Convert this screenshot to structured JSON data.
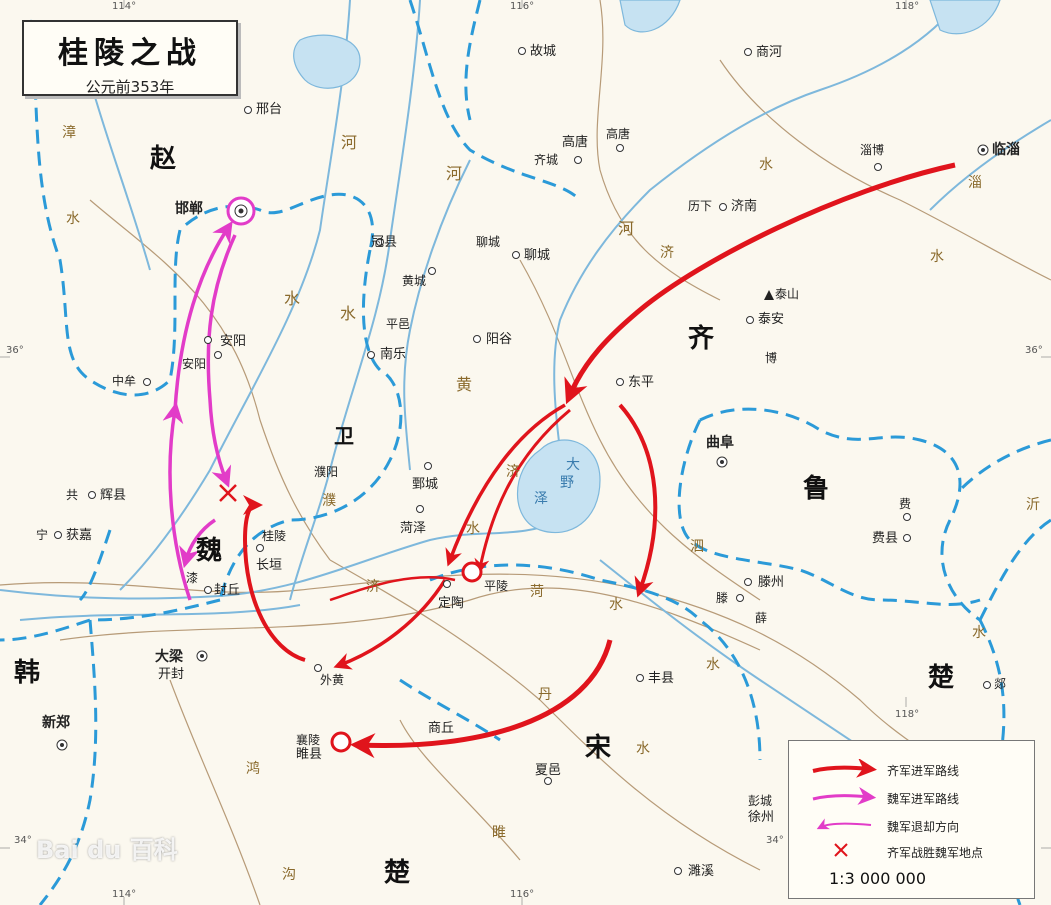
{
  "title": {
    "main": "桂陵之战",
    "sub": "公元前353年"
  },
  "grid_labels": {
    "lon": [
      "114°",
      "116°",
      "118°"
    ],
    "lat": [
      "36°",
      "34°"
    ]
  },
  "regions": {
    "zhao": "赵",
    "wei_state": "魏",
    "wei_small": "卫",
    "qi": "齐",
    "lu": "鲁",
    "han": "韩",
    "song": "宋",
    "chu_north": "楚",
    "chu_south": "楚"
  },
  "cities": {
    "handan": "邯郸",
    "xingtai": "邢台",
    "anyang_modern": "安阳",
    "anyang_old": "安阳",
    "zhongmou": "中牟",
    "gong": "共",
    "huixian": "辉县",
    "ning": "宁",
    "huojia": "获嘉",
    "qi_city": "漆",
    "fengqiu": "封丘",
    "guiling": "桂陵",
    "changyuan": "长垣",
    "daliang": "大梁",
    "kaifeng": "开封",
    "xinzheng": "新郑",
    "waihuang": "外黄",
    "xiangling": "襄陵",
    "suixian": "睢县",
    "shangqiu": "商丘",
    "xiayi": "夏邑",
    "pengcheng": "彭城",
    "xuzhou": "徐州",
    "suixi": "濉溪",
    "fengxian": "丰县",
    "dingtao": "定陶",
    "pingling": "平陵",
    "heze": "菏泽",
    "juancheng": "鄄城",
    "puyang": "濮阳",
    "guanxian": "冠县",
    "huangcheng": "黄城",
    "pingyi": "平邑",
    "nanle": "南乐",
    "yanggu": "阳谷",
    "liaocheng_old": "聊城",
    "liaocheng": "聊城",
    "gucheng": "故城",
    "shanghe": "商河",
    "gaotang_old": "高唐",
    "gaotang": "高唐",
    "qicheng": "齐城",
    "lixia": "历下",
    "jinan": "济南",
    "zibo": "淄博",
    "linzi": "临淄",
    "taishan": "泰山",
    "taian": "泰安",
    "bo": "博",
    "dongping": "东平",
    "qufu": "曲阜",
    "fei_old": "费",
    "feixian": "费县",
    "tengzhou": "滕州",
    "teng": "滕",
    "xue": "薛",
    "tan": "郯"
  },
  "rivers": {
    "zhang1": "漳",
    "zhang2": "水",
    "he1": "河",
    "he2": "河",
    "he3": "河",
    "shui_a": "水",
    "shui_b": "水",
    "huang": "黄",
    "ji1": "济",
    "ji2": "济",
    "ji3": "济",
    "ji_shui": "水",
    "daye1": "大",
    "daye2": "野",
    "daye3": "泽",
    "pu": "濮",
    "pu_shui": "水",
    "si": "泗",
    "si_shui": "水",
    "ji_jiang": "济",
    "hua": "菏",
    "dan": "丹",
    "dan_shui": "水",
    "sui": "睢",
    "sui_shui": "水",
    "hong": "鸿",
    "gou": "沟",
    "zi": "淄",
    "zi_shui": "水",
    "yi": "沂",
    "yi_shui": "水",
    "bian": "汴",
    "song_shui": "水"
  },
  "legend": {
    "qi_advance": "齐军进军路线",
    "wei_advance": "魏军进军路线",
    "wei_retreat": "魏军退却方向",
    "qi_victory": "齐军战胜魏军地点",
    "scale": "1:3 000 000"
  },
  "watermark": "Bai du 百科",
  "colors": {
    "qi_route": "#e0141c",
    "wei_route": "#e23cc8",
    "border": "#2b9ad8",
    "river": "#7eb8dc",
    "water": "#c6e2f2"
  }
}
